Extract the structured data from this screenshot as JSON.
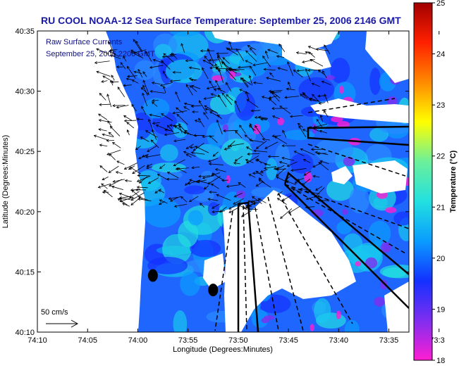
{
  "chart_data": {
    "type": "heatmap",
    "title": "RU COOL  NOAA-12  Sea Surface Temperature:  September 25, 2006 2146 GMT",
    "inset_labels": [
      "Raw Surface Currents",
      "September 25, 2006 2200 GMT"
    ],
    "xlabel": "Longitude (Degrees:Minutes)",
    "ylabel": "Latitude (Degrees:Minutes)",
    "xlim": [
      -74.1667,
      -73.55
    ],
    "ylim": [
      40.1667,
      40.5833
    ],
    "x_ticks": [
      {
        "value": -74.1667,
        "label": "74:10"
      },
      {
        "value": -74.0833,
        "label": "74:05"
      },
      {
        "value": -74.0,
        "label": "74:00"
      },
      {
        "value": -73.9167,
        "label": "73:55"
      },
      {
        "value": -73.8333,
        "label": "73:50"
      },
      {
        "value": -73.75,
        "label": "73:45"
      },
      {
        "value": -73.6667,
        "label": "73:40"
      },
      {
        "value": -73.5833,
        "label": "73:35"
      },
      {
        "value": -73.5,
        "label": "73:3"
      }
    ],
    "y_ticks": [
      {
        "value": 40.1667,
        "label": "40:10"
      },
      {
        "value": 40.25,
        "label": "40:15"
      },
      {
        "value": 40.3333,
        "label": "40:20"
      },
      {
        "value": 40.4167,
        "label": "40:25"
      },
      {
        "value": 40.5,
        "label": "40:30"
      },
      {
        "value": 40.5833,
        "label": "40:35"
      }
    ],
    "colorbar": {
      "label": "Temperature (°C)",
      "min": 18,
      "max": 25,
      "ticks": [
        "18",
        "19",
        "20",
        "21",
        "22",
        "23",
        "24",
        "25"
      ],
      "colors": [
        "#ff1ed2",
        "#7f2ef0",
        "#1430ff",
        "#0a9cff",
        "#22e0e0",
        "#6cf09a",
        "#ffff00",
        "#ff8a00",
        "#ff2000",
        "#a00000"
      ]
    },
    "scale_arrow": {
      "label": "50 cm/s",
      "speed_cm_s": 50
    },
    "land_color": "#ffffff",
    "dominant_sst_c": 19.8,
    "markers": [
      {
        "lon": -73.975,
        "lat": 40.245,
        "shape": "filled-circle"
      },
      {
        "lon": -73.875,
        "lat": 40.225,
        "shape": "filled-circle"
      }
    ],
    "grid": false
  }
}
